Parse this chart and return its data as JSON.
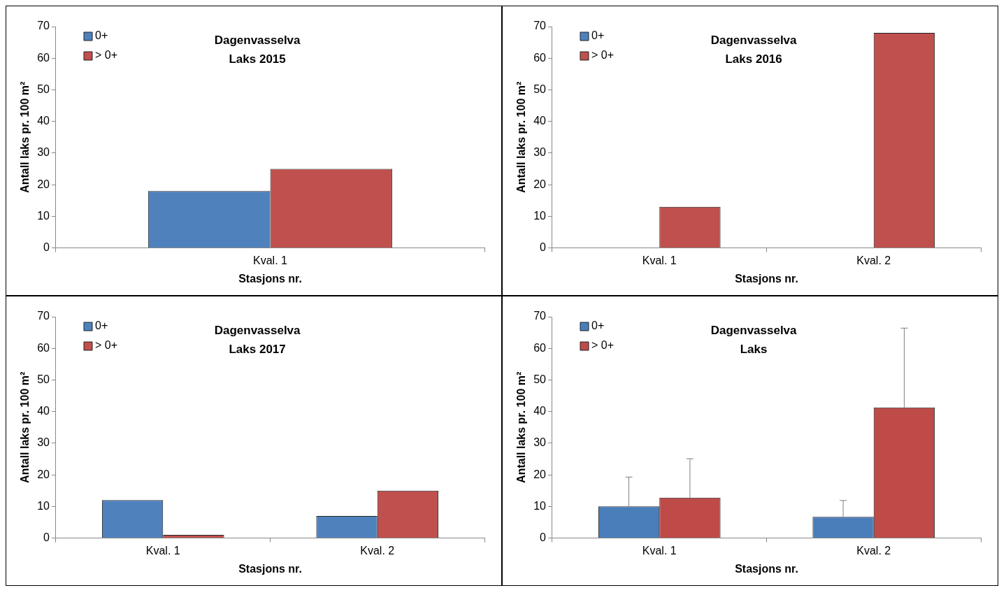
{
  "chart_data": [
    {
      "type": "bar",
      "title": "Dagenvasselva",
      "subtitle": "Laks 2015",
      "xlabel": "Stasjons nr.",
      "ylabel": "Antall laks pr. 100 m²",
      "categories": [
        "Kval. 1"
      ],
      "ylim": [
        0,
        70
      ],
      "yticks": [
        0,
        10,
        20,
        30,
        40,
        50,
        60,
        70
      ],
      "grid": false,
      "legend": "top left",
      "series": [
        {
          "name": "0+",
          "color": "#4f81bd",
          "values": [
            18
          ]
        },
        {
          "name": "> 0+",
          "color": "#c0504d",
          "values": [
            25
          ]
        }
      ]
    },
    {
      "type": "bar",
      "title": "Dagenvasselva",
      "subtitle": "Laks 2016",
      "xlabel": "Stasjons nr.",
      "ylabel": "Antall laks pr. 100 m²",
      "categories": [
        "Kval. 1",
        "Kval. 2"
      ],
      "ylim": [
        0,
        70
      ],
      "yticks": [
        0,
        10,
        20,
        30,
        40,
        50,
        60,
        70
      ],
      "grid": false,
      "legend": "top left",
      "series": [
        {
          "name": "0+",
          "color": "#4f81bd",
          "values": [
            0,
            0
          ]
        },
        {
          "name": "> 0+",
          "color": "#c0504d",
          "values": [
            13,
            68
          ]
        }
      ]
    },
    {
      "type": "bar",
      "title": "Dagenvasselva",
      "subtitle": "Laks 2017",
      "xlabel": "Stasjons nr.",
      "ylabel": "Antall laks pr. 100 m²",
      "categories": [
        "Kval. 1",
        "Kval. 2"
      ],
      "ylim": [
        0,
        70
      ],
      "yticks": [
        0,
        10,
        20,
        30,
        40,
        50,
        60,
        70
      ],
      "grid": false,
      "legend": "top left",
      "series": [
        {
          "name": "0+",
          "color": "#4f81bd",
          "values": [
            12,
            7
          ]
        },
        {
          "name": "> 0+",
          "color": "#c0504d",
          "values": [
            1,
            15
          ]
        }
      ]
    },
    {
      "type": "bar",
      "title": "Dagenvasselva",
      "subtitle": "Laks",
      "xlabel": "Stasjons nr.",
      "ylabel": "Antall laks pr. 100 m²",
      "categories": [
        "Kval. 1",
        "Kval. 2"
      ],
      "ylim": [
        0,
        70
      ],
      "yticks": [
        0,
        10,
        20,
        30,
        40,
        50,
        60,
        70
      ],
      "grid": false,
      "legend": "top left",
      "series": [
        {
          "name": "0+",
          "color": "#4a7ebb",
          "values": [
            10,
            6.7
          ],
          "errors": [
            [
              10,
              19.3
            ],
            [
              6.7,
              11.9
            ]
          ]
        },
        {
          "name": "> 0+",
          "color": "#be4b48",
          "values": [
            12.8,
            41.3
          ],
          "errors": [
            [
              12.8,
              25.1
            ],
            [
              41.3,
              66.4
            ]
          ]
        }
      ]
    }
  ]
}
